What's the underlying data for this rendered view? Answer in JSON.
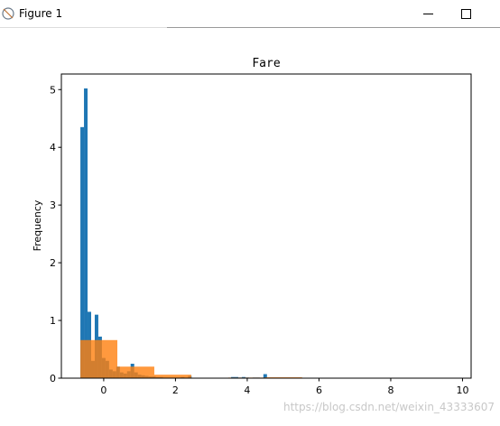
{
  "window": {
    "title": "Figure 1"
  },
  "chart_data": {
    "type": "histogram",
    "title": "Fare",
    "y_label": "Frequency",
    "series": [
      {
        "color": "#1f77b4",
        "alpha": 1,
        "bins": [
          -0.65,
          -0.55,
          -0.45,
          -0.35,
          -0.25,
          -0.15,
          -0.05,
          0.05,
          0.15,
          0.25,
          0.35,
          0.45,
          0.55,
          0.65,
          0.75,
          0.85,
          0.95,
          1.05,
          1.15,
          1.25,
          1.35,
          1.45,
          1.55,
          1.65,
          1.75,
          1.85,
          1.95,
          2.05,
          2.15,
          2.25,
          2.35,
          2.45,
          2.55,
          2.65,
          2.75,
          2.85,
          2.95,
          3.05,
          3.15,
          3.25,
          3.35,
          3.45,
          3.55,
          3.65,
          3.75,
          3.85,
          3.95,
          4.05,
          4.15,
          4.25,
          4.35,
          4.45,
          4.55,
          4.65,
          4.75,
          4.85,
          4.95,
          5.05,
          5.15,
          5.25,
          5.35,
          5.45,
          5.55,
          5.65,
          5.75,
          5.85,
          5.95,
          6.05,
          6.15,
          6.25,
          6.35,
          6.45,
          6.55,
          6.65,
          6.75,
          6.85,
          6.95,
          7.05,
          7.15,
          7.25,
          7.35,
          7.45,
          7.55,
          7.65,
          7.75,
          7.85,
          7.95,
          8.05,
          8.15,
          8.25,
          8.35,
          8.45,
          8.55,
          8.65,
          8.75,
          8.85,
          8.95,
          9.05,
          9.15,
          9.25,
          9.35
        ],
        "values": [
          4.35,
          5.02,
          1.15,
          0.3,
          1.1,
          0.72,
          0.35,
          0.3,
          0.15,
          0.12,
          0.2,
          0.1,
          0.08,
          0.12,
          0.25,
          0.1,
          0.06,
          0.05,
          0.04,
          0.03,
          0.03,
          0.02,
          0.02,
          0.01,
          0.01,
          0.01,
          0.01,
          0.01,
          0.02,
          0.01,
          0.04,
          0,
          0,
          0,
          0,
          0,
          0,
          0,
          0,
          0,
          0,
          0,
          0.02,
          0.02,
          0.01,
          0.02,
          0.01,
          0,
          0.01,
          0.01,
          0,
          0.07,
          0,
          0,
          0,
          0,
          0,
          0,
          0,
          0,
          0,
          0,
          0,
          0,
          0,
          0,
          0,
          0,
          0,
          0,
          0,
          0,
          0,
          0,
          0,
          0,
          0,
          0,
          0,
          0,
          0,
          0,
          0,
          0,
          0,
          0,
          0,
          0,
          0,
          0,
          0,
          0,
          0,
          0,
          0,
          0,
          0,
          0,
          0,
          0
        ]
      },
      {
        "color": "#ff7f0e",
        "alpha": 0.8,
        "bins": [
          -0.65,
          0.38,
          1.41,
          2.44,
          3.47,
          4.5,
          5.53
        ],
        "values": [
          0.66,
          0.2,
          0.06,
          0.003,
          0.01,
          0.015
        ]
      }
    ],
    "xlim": [
      -1.18,
      10.24
    ],
    "ylim": [
      0,
      5.27
    ],
    "xticks": [
      0,
      2,
      4,
      6,
      8,
      10
    ],
    "yticks": [
      0,
      1,
      2,
      3,
      4,
      5
    ]
  },
  "watermark": "https://blog.csdn.net/weixin_43333607"
}
